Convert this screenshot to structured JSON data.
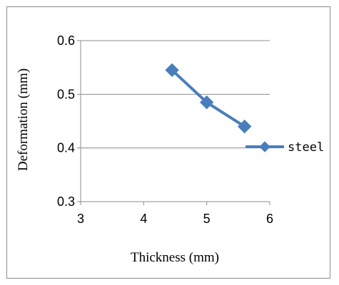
{
  "chart_data": {
    "type": "line",
    "xlabel": "Thickness (mm)",
    "ylabel": "Deformation (mm)",
    "xlim": [
      3,
      6
    ],
    "ylim": [
      0.3,
      0.6
    ],
    "x_ticks": [
      "3",
      "4",
      "5",
      "6"
    ],
    "y_ticks": [
      "0.3",
      "0.4",
      "0.5",
      "0.6"
    ],
    "grid": "horizontal",
    "legend_position": "right",
    "series": [
      {
        "name": "steel",
        "color": "#4a7ebb",
        "marker": "diamond",
        "x": [
          4.45,
          5.0,
          5.6
        ],
        "y": [
          0.545,
          0.485,
          0.44
        ]
      }
    ]
  }
}
